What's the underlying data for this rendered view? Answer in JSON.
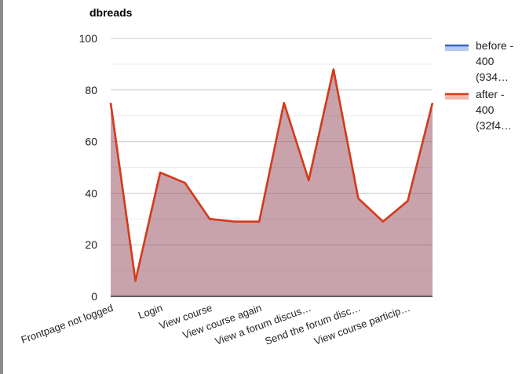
{
  "chart_data": {
    "type": "area",
    "title": "dbreads",
    "xlabel": "",
    "ylabel": "",
    "ylim": [
      0,
      100
    ],
    "yticks": [
      0,
      20,
      40,
      60,
      80,
      100
    ],
    "grid": true,
    "legend_position": "right",
    "categories": [
      "Frontpage not logged",
      "",
      "Login",
      "",
      "View course",
      "",
      "View course again",
      "",
      "View a forum discus…",
      "",
      "Send the forum disc…",
      "",
      "View course particip…",
      ""
    ],
    "series": [
      {
        "name": "before - 400 (934…",
        "legend_lines": [
          "before -",
          "400",
          "(934…"
        ],
        "color": "#3366cc",
        "values": [
          75,
          6,
          48,
          44,
          30,
          29,
          29,
          75,
          45,
          88,
          38,
          29,
          37,
          75
        ]
      },
      {
        "name": "after - 400 (32f4…",
        "legend_lines": [
          "after -",
          "400",
          "(32f4…"
        ],
        "color": "#dc3912",
        "values": [
          75,
          6,
          48,
          44,
          30,
          29,
          29,
          75,
          45,
          88,
          38,
          29,
          37,
          75
        ]
      }
    ]
  }
}
